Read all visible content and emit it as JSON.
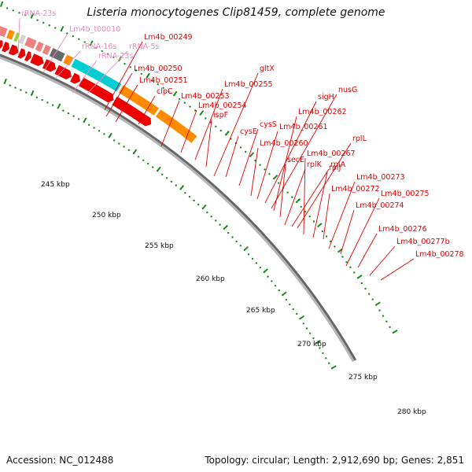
{
  "title": "Listeria monocytogenes Clip81459, complete genome",
  "footer": {
    "accession_label": "Accession: NC_012488",
    "topology": "Topology: circular;",
    "length": "Length: 2,912,690 bp;",
    "genes": "Genes: 2,851"
  },
  "colors": {
    "rna": "#f4a0cc",
    "rna_label": "#ee88c4",
    "gene_label": "#e00000",
    "cds_arrow": "#ee0000",
    "tick": "#1a8a1a",
    "backbone": "#8c8c8c"
  },
  "scale_labels": [
    "245 kbp",
    "250 kbp",
    "255 kbp",
    "260 kbp",
    "265 kbp",
    "270 kbp",
    "275 kbp",
    "280 kbp"
  ],
  "rna_labels": [
    "rRNA-23s",
    "Lm4b_t00010",
    "rRNA-16s",
    "rRNA-5s",
    "rRNA-23s"
  ],
  "gene_labels": [
    "Lm4b_00249",
    "Lm4b_00250",
    "Lm4b_00251",
    "clpC",
    "Lm4b_00253",
    "Lm4b_00254",
    "Lm4b_00255",
    "ispF",
    "gltX",
    "cysE",
    "cysS",
    "Lm4b_00260",
    "Lm4b_00261",
    "sigH",
    "nusG",
    "Lm4b_00262",
    "secE",
    "rplK",
    "rplA",
    "rplL",
    "Lm4b_00267",
    "rplJ",
    "Lm4b_00272",
    "Lm4b_00273",
    "Lm4b_00274",
    "Lm4b_00275",
    "Lm4b_00276",
    "Lm4b_00277b",
    "Lm4b_00278"
  ],
  "cog_colors": [
    "#ff8c00",
    "#4682b4",
    "#b0b0b0",
    "#bdb76b",
    "#bdb76b",
    "#d3d3d3",
    "#7b68ee",
    "#f08080",
    "#4682b4",
    "#f08080",
    "#a0a0a0",
    "#f08080",
    "#ff8c00",
    "#9acd32",
    "#d3d3d3",
    "#f08080",
    "#f08080",
    "#f08080",
    "#696969",
    "#ff8c00",
    "#00ced1",
    "#ff8c00",
    "#ff8c00"
  ]
}
